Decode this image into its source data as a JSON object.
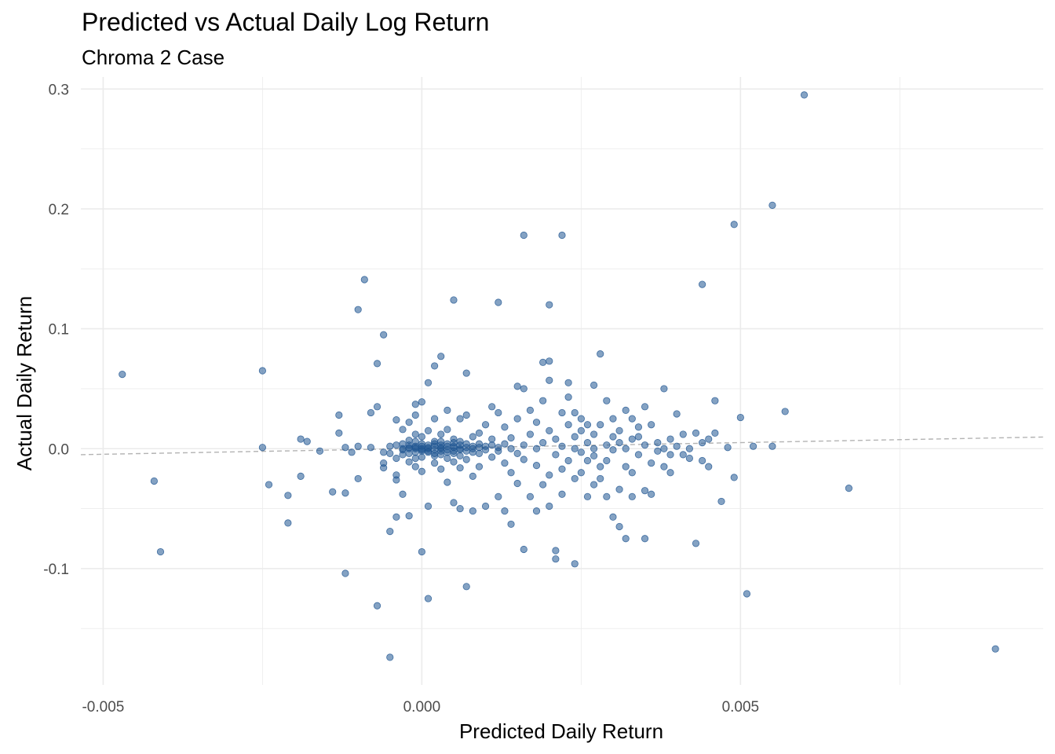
{
  "chart_data": {
    "type": "scatter",
    "title": "Predicted vs Actual Daily Log Return",
    "subtitle": "Chroma 2 Case",
    "xlabel": "Predicted Daily Return",
    "ylabel": "Actual Daily Return",
    "xlim": [
      -0.00535,
      0.00975
    ],
    "ylim": [
      -0.197,
      0.31
    ],
    "x_ticks": [
      {
        "value": -0.005,
        "label": "-0.005"
      },
      {
        "value": 0.0,
        "label": "0.000"
      },
      {
        "value": 0.005,
        "label": "0.005"
      }
    ],
    "y_ticks": [
      {
        "value": -0.1,
        "label": "-0.1"
      },
      {
        "value": 0.0,
        "label": "0.0"
      },
      {
        "value": 0.1,
        "label": "0.1"
      },
      {
        "value": 0.2,
        "label": "0.2"
      },
      {
        "value": 0.3,
        "label": "0.3"
      }
    ],
    "grid": true,
    "point_color": "#1f5591",
    "point_opacity": 0.55,
    "reference_line": {
      "style": "dashed",
      "color": "#b3b3b3",
      "x": [
        -0.00535,
        0.00975
      ],
      "y": [
        -0.005,
        0.0097
      ]
    },
    "points": [
      [
        -0.0047,
        0.062
      ],
      [
        -0.0042,
        -0.027
      ],
      [
        -0.0041,
        -0.086
      ],
      [
        -0.0025,
        0.065
      ],
      [
        -0.0025,
        0.001
      ],
      [
        -0.0024,
        -0.03
      ],
      [
        -0.0021,
        -0.039
      ],
      [
        -0.0021,
        -0.062
      ],
      [
        -0.0019,
        -0.023
      ],
      [
        -0.0019,
        0.008
      ],
      [
        -0.0018,
        0.006
      ],
      [
        -0.0016,
        -0.002
      ],
      [
        -0.0014,
        -0.036
      ],
      [
        -0.0013,
        0.028
      ],
      [
        -0.0013,
        0.013
      ],
      [
        -0.0012,
        -0.104
      ],
      [
        -0.0012,
        0.001
      ],
      [
        -0.0012,
        -0.037
      ],
      [
        -0.0011,
        -0.003
      ],
      [
        -0.001,
        0.002
      ],
      [
        -0.001,
        -0.025
      ],
      [
        -0.001,
        0.116
      ],
      [
        -0.0009,
        0.141
      ],
      [
        -0.0008,
        0.03
      ],
      [
        -0.0008,
        0.001
      ],
      [
        -0.0007,
        0.071
      ],
      [
        -0.0007,
        -0.131
      ],
      [
        -0.0007,
        0.035
      ],
      [
        -0.0006,
        0.095
      ],
      [
        -0.0006,
        -0.012
      ],
      [
        -0.0006,
        -0.016
      ],
      [
        -0.0006,
        -0.003
      ],
      [
        -0.0005,
        -0.069
      ],
      [
        -0.0005,
        -0.174
      ],
      [
        -0.0005,
        0.002
      ],
      [
        -0.0005,
        -0.004
      ],
      [
        -0.0004,
        -0.057
      ],
      [
        -0.0004,
        -0.022
      ],
      [
        -0.0004,
        -0.026
      ],
      [
        -0.0004,
        -0.008
      ],
      [
        -0.0004,
        0.024
      ],
      [
        -0.0004,
        0.003
      ],
      [
        -0.0003,
        -0.001
      ],
      [
        -0.0003,
        0.0
      ],
      [
        -0.0003,
        0.016
      ],
      [
        -0.0003,
        -0.005
      ],
      [
        -0.0003,
        0.004
      ],
      [
        -0.0003,
        -0.038
      ],
      [
        -0.0002,
        0.001
      ],
      [
        -0.0002,
        0.0
      ],
      [
        -0.0002,
        -0.004
      ],
      [
        -0.0002,
        -0.011
      ],
      [
        -0.0002,
        0.007
      ],
      [
        -0.0002,
        0.003
      ],
      [
        -0.0002,
        0.022
      ],
      [
        -0.0002,
        -0.056
      ],
      [
        -0.0001,
        0.037
      ],
      [
        -0.0001,
        0.002
      ],
      [
        -0.0001,
        0.0
      ],
      [
        -0.0001,
        -0.003
      ],
      [
        -0.0001,
        0.001
      ],
      [
        -0.0001,
        -0.008
      ],
      [
        -0.0001,
        0.006
      ],
      [
        -0.0001,
        -0.015
      ],
      [
        -0.0001,
        0.012
      ],
      [
        -0.0001,
        0.028
      ],
      [
        0.0,
        0.002
      ],
      [
        0.0,
        -0.002
      ],
      [
        0.0,
        -0.001
      ],
      [
        0.0,
        0.004
      ],
      [
        0.0,
        0.0
      ],
      [
        0.0,
        0.039
      ],
      [
        0.0,
        -0.007
      ],
      [
        0.0,
        -0.019
      ],
      [
        0.0,
        0.01
      ],
      [
        0.0,
        -0.086
      ],
      [
        0.0001,
        0.055
      ],
      [
        0.0001,
        0.001
      ],
      [
        0.0001,
        -0.002
      ],
      [
        0.0001,
        0.003
      ],
      [
        0.0001,
        -0.003
      ],
      [
        0.0001,
        -0.048
      ],
      [
        0.0001,
        -0.125
      ],
      [
        0.0001,
        0.015
      ],
      [
        0.0001,
        0.0
      ],
      [
        0.0002,
        0.069
      ],
      [
        0.0002,
        0.002
      ],
      [
        0.0002,
        -0.001
      ],
      [
        0.0002,
        0.004
      ],
      [
        0.0002,
        -0.004
      ],
      [
        0.0002,
        0.006
      ],
      [
        0.0002,
        -0.006
      ],
      [
        0.0002,
        0.025
      ],
      [
        0.0002,
        -0.012
      ],
      [
        0.0003,
        0.001
      ],
      [
        0.0003,
        0.0
      ],
      [
        0.0003,
        -0.002
      ],
      [
        0.0003,
        0.003
      ],
      [
        0.0003,
        -0.005
      ],
      [
        0.0003,
        0.012
      ],
      [
        0.0003,
        -0.017
      ],
      [
        0.0003,
        0.077
      ],
      [
        0.0003,
        0.006
      ],
      [
        0.0004,
        0.002
      ],
      [
        0.0004,
        -0.001
      ],
      [
        0.0004,
        0.004
      ],
      [
        0.0004,
        -0.003
      ],
      [
        0.0004,
        0.032
      ],
      [
        0.0004,
        -0.008
      ],
      [
        0.0004,
        0.016
      ],
      [
        0.0004,
        -0.028
      ],
      [
        0.0005,
        0.001
      ],
      [
        0.0005,
        0.002
      ],
      [
        0.0005,
        -0.002
      ],
      [
        0.0005,
        0.005
      ],
      [
        0.0005,
        -0.004
      ],
      [
        0.0005,
        0.124
      ],
      [
        0.0005,
        -0.045
      ],
      [
        0.0005,
        -0.011
      ],
      [
        0.0005,
        0.008
      ],
      [
        0.0006,
        0.0
      ],
      [
        0.0006,
        0.003
      ],
      [
        0.0006,
        -0.001
      ],
      [
        0.0006,
        0.006
      ],
      [
        0.0006,
        -0.006
      ],
      [
        0.0006,
        -0.05
      ],
      [
        0.0006,
        0.025
      ],
      [
        0.0006,
        -0.016
      ],
      [
        0.0007,
        0.001
      ],
      [
        0.0007,
        -0.002
      ],
      [
        0.0007,
        0.004
      ],
      [
        0.0007,
        0.063
      ],
      [
        0.0007,
        -0.115
      ],
      [
        0.0007,
        0.028
      ],
      [
        0.0007,
        -0.009
      ],
      [
        0.0008,
        0.002
      ],
      [
        0.0008,
        -0.003
      ],
      [
        0.0008,
        0.0
      ],
      [
        0.0008,
        -0.052
      ],
      [
        0.0008,
        0.01
      ],
      [
        0.0008,
        -0.023
      ],
      [
        0.0009,
        0.001
      ],
      [
        0.0009,
        0.004
      ],
      [
        0.0009,
        -0.004
      ],
      [
        0.0009,
        0.013
      ],
      [
        0.0009,
        -0.015
      ],
      [
        0.001,
        0.002
      ],
      [
        0.001,
        -0.001
      ],
      [
        0.001,
        -0.048
      ],
      [
        0.001,
        0.02
      ],
      [
        0.0011,
        0.003
      ],
      [
        0.0011,
        0.035
      ],
      [
        0.0011,
        -0.007
      ],
      [
        0.0011,
        0.008
      ],
      [
        0.0012,
        0.001
      ],
      [
        0.0012,
        0.122
      ],
      [
        0.0012,
        -0.002
      ],
      [
        0.0012,
        -0.04
      ],
      [
        0.0012,
        0.03
      ],
      [
        0.0013,
        0.004
      ],
      [
        0.0013,
        -0.052
      ],
      [
        0.0013,
        -0.012
      ],
      [
        0.0013,
        0.018
      ],
      [
        0.0014,
        0.0
      ],
      [
        0.0014,
        -0.063
      ],
      [
        0.0014,
        0.009
      ],
      [
        0.0014,
        -0.02
      ],
      [
        0.0015,
        0.025
      ],
      [
        0.0015,
        -0.004
      ],
      [
        0.0015,
        0.052
      ],
      [
        0.0015,
        -0.029
      ],
      [
        0.0016,
        0.178
      ],
      [
        0.0016,
        -0.084
      ],
      [
        0.0016,
        0.05
      ],
      [
        0.0016,
        0.003
      ],
      [
        0.0016,
        -0.009
      ],
      [
        0.0017,
        0.032
      ],
      [
        0.0017,
        -0.04
      ],
      [
        0.0017,
        0.012
      ],
      [
        0.0018,
        0.0
      ],
      [
        0.0018,
        -0.014
      ],
      [
        0.0018,
        0.022
      ],
      [
        0.0018,
        -0.052
      ],
      [
        0.0019,
        0.072
      ],
      [
        0.0019,
        0.005
      ],
      [
        0.0019,
        -0.03
      ],
      [
        0.0019,
        0.04
      ],
      [
        0.002,
        0.12
      ],
      [
        0.002,
        0.073
      ],
      [
        0.002,
        0.057
      ],
      [
        0.002,
        -0.048
      ],
      [
        0.002,
        -0.022
      ],
      [
        0.002,
        0.015
      ],
      [
        0.0021,
        -0.085
      ],
      [
        0.0021,
        -0.092
      ],
      [
        0.0021,
        0.008
      ],
      [
        0.0021,
        -0.005
      ],
      [
        0.0022,
        0.178
      ],
      [
        0.0022,
        0.03
      ],
      [
        0.0022,
        -0.038
      ],
      [
        0.0022,
        0.002
      ],
      [
        0.0022,
        -0.017
      ],
      [
        0.0023,
        0.055
      ],
      [
        0.0023,
        0.02
      ],
      [
        0.0023,
        -0.01
      ],
      [
        0.0023,
        0.043
      ],
      [
        0.0024,
        -0.096
      ],
      [
        0.0024,
        0.01
      ],
      [
        0.0024,
        -0.025
      ],
      [
        0.0024,
        0.03
      ],
      [
        0.0024,
        0.0
      ],
      [
        0.0025,
        0.015
      ],
      [
        0.0025,
        -0.02
      ],
      [
        0.0025,
        -0.003
      ],
      [
        0.0025,
        0.025
      ],
      [
        0.0026,
        0.005
      ],
      [
        0.0026,
        -0.01
      ],
      [
        0.0026,
        -0.04
      ],
      [
        0.0026,
        0.02
      ],
      [
        0.0027,
        0.053
      ],
      [
        0.0027,
        -0.03
      ],
      [
        0.0027,
        0.0
      ],
      [
        0.0027,
        0.012
      ],
      [
        0.0027,
        -0.006
      ],
      [
        0.0028,
        0.079
      ],
      [
        0.0028,
        -0.015
      ],
      [
        0.0028,
        0.02
      ],
      [
        0.0028,
        -0.025
      ],
      [
        0.0029,
        0.003
      ],
      [
        0.0029,
        -0.04
      ],
      [
        0.0029,
        0.04
      ],
      [
        0.0029,
        -0.01
      ],
      [
        0.003,
        0.01
      ],
      [
        0.003,
        -0.057
      ],
      [
        0.003,
        0.025
      ],
      [
        0.003,
        -0.001
      ],
      [
        0.0031,
        -0.065
      ],
      [
        0.0031,
        -0.034
      ],
      [
        0.0031,
        0.015
      ],
      [
        0.0031,
        0.005
      ],
      [
        0.0032,
        -0.075
      ],
      [
        0.0032,
        0.032
      ],
      [
        0.0032,
        -0.015
      ],
      [
        0.0032,
        0.0
      ],
      [
        0.0033,
        0.025
      ],
      [
        0.0033,
        -0.04
      ],
      [
        0.0033,
        0.008
      ],
      [
        0.0033,
        -0.02
      ],
      [
        0.0034,
        0.018
      ],
      [
        0.0034,
        -0.005
      ],
      [
        0.0034,
        0.01
      ],
      [
        0.0035,
        -0.075
      ],
      [
        0.0035,
        0.035
      ],
      [
        0.0035,
        -0.035
      ],
      [
        0.0035,
        0.003
      ],
      [
        0.0036,
        0.02
      ],
      [
        0.0036,
        -0.012
      ],
      [
        0.0036,
        -0.038
      ],
      [
        0.0037,
        0.005
      ],
      [
        0.0037,
        -0.002
      ],
      [
        0.0038,
        0.05
      ],
      [
        0.0038,
        0.0
      ],
      [
        0.0038,
        -0.015
      ],
      [
        0.0039,
        -0.02
      ],
      [
        0.0039,
        0.008
      ],
      [
        0.0039,
        -0.005
      ],
      [
        0.004,
        0.029
      ],
      [
        0.004,
        0.002
      ],
      [
        0.0041,
        -0.005
      ],
      [
        0.0041,
        0.012
      ],
      [
        0.0042,
        0.0
      ],
      [
        0.0042,
        -0.008
      ],
      [
        0.0043,
        -0.079
      ],
      [
        0.0043,
        0.013
      ],
      [
        0.0044,
        0.137
      ],
      [
        0.0044,
        0.005
      ],
      [
        0.0044,
        -0.01
      ],
      [
        0.0045,
        0.008
      ],
      [
        0.0045,
        -0.015
      ],
      [
        0.0046,
        0.04
      ],
      [
        0.0046,
        0.013
      ],
      [
        0.0047,
        -0.044
      ],
      [
        0.0048,
        0.001
      ],
      [
        0.0049,
        0.187
      ],
      [
        0.0049,
        -0.024
      ],
      [
        0.005,
        0.026
      ],
      [
        0.0051,
        -0.121
      ],
      [
        0.0052,
        0.002
      ],
      [
        0.0055,
        0.203
      ],
      [
        0.0055,
        0.002
      ],
      [
        0.0057,
        0.031
      ],
      [
        0.006,
        0.295
      ],
      [
        0.0067,
        -0.033
      ],
      [
        0.009,
        -0.167
      ]
    ]
  }
}
